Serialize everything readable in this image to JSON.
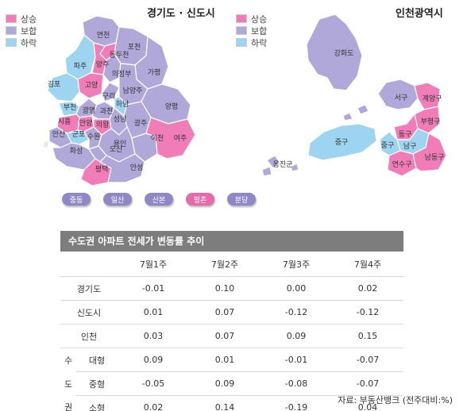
{
  "maps": {
    "gyeonggi": {
      "title": "경기도 · 신도시",
      "legend": [
        {
          "label": "상승",
          "color": "#f07cb8"
        },
        {
          "label": "보합",
          "color": "#b0a8d8"
        },
        {
          "label": "하락",
          "color": "#9dd4f0"
        }
      ],
      "regions": [
        "연천",
        "포천",
        "동두천",
        "파주",
        "양주",
        "의정부",
        "가평",
        "고양",
        "김포",
        "구리",
        "남양주",
        "부천",
        "광명",
        "과천",
        "하남",
        "시흥",
        "안양",
        "의왕",
        "성남",
        "광주",
        "양평",
        "안산",
        "군포",
        "수원",
        "용인",
        "이천",
        "여주",
        "화성",
        "오산",
        "평택",
        "안성"
      ],
      "new_towns": [
        {
          "label": "중동",
          "color": "#8f88c4"
        },
        {
          "label": "일산",
          "color": "#8f88c4"
        },
        {
          "label": "산본",
          "color": "#8f88c4"
        },
        {
          "label": "평촌",
          "color": "#e46aa8"
        },
        {
          "label": "분당",
          "color": "#8f88c4"
        }
      ]
    },
    "incheon": {
      "title": "인천광역시",
      "legend": [
        {
          "label": "상승",
          "color": "#f07cb8"
        },
        {
          "label": "보합",
          "color": "#b0a8d8"
        },
        {
          "label": "하락",
          "color": "#9dd4f0"
        }
      ],
      "regions": [
        "강화도",
        "서구",
        "계양구",
        "부평구",
        "동구",
        "중구",
        "남구",
        "옹진군",
        "연수구",
        "남동구"
      ]
    }
  },
  "chart_data": {
    "type": "table",
    "title": "수도권 아파트 전세가 변동률 추이",
    "columns": [
      "7월1주",
      "7월2주",
      "7월3주",
      "7월4주"
    ],
    "rows": [
      {
        "label": "경기도",
        "values": [
          "-0.01",
          "0.10",
          "0.00",
          "0.02"
        ]
      },
      {
        "label": "신도시",
        "values": [
          "0.01",
          "0.07",
          "-0.12",
          "-0.12"
        ]
      },
      {
        "label": "인천",
        "values": [
          "0.03",
          "0.07",
          "0.09",
          "0.15"
        ]
      }
    ],
    "group": {
      "label": [
        "수",
        "도",
        "권"
      ],
      "rows": [
        {
          "label": "대형",
          "values": [
            "0.09",
            "0.01",
            "-0.01",
            "-0.07"
          ]
        },
        {
          "label": "중형",
          "values": [
            "-0.05",
            "0.09",
            "-0.08",
            "-0.07"
          ]
        },
        {
          "label": "소형",
          "values": [
            "0.02",
            "0.14",
            "-0.19",
            "0.04"
          ]
        }
      ]
    },
    "source": "자료: 부동산뱅크 (전주대비:%)"
  }
}
